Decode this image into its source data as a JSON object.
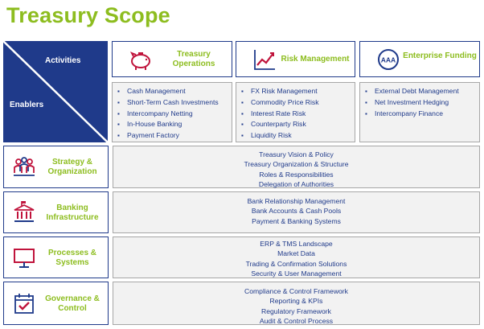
{
  "title": "Treasury Scope",
  "corner": {
    "activities_label": "Activities",
    "enablers_label": "Enablers"
  },
  "activities": [
    {
      "icon": "piggy-bank-icon",
      "title_line1": "Treasury",
      "title_line2": "Operations",
      "items": [
        "Cash Management",
        "Short-Term Cash Investments",
        "Intercompany Netting",
        "In-House Banking",
        "Payment Factory"
      ]
    },
    {
      "icon": "line-chart-icon",
      "title_line1": "Risk Management",
      "items": [
        "FX Risk Management",
        "Commodity Price Risk",
        "Interest Rate Risk",
        "Counterparty Risk",
        "Liquidity Risk"
      ]
    },
    {
      "icon": "aaa-rating-icon",
      "icon_text": "AAA",
      "title_line1": "Enterprise Funding",
      "items": [
        "External Debt Management",
        "Net Investment Hedging",
        "Intercompany Finance"
      ]
    }
  ],
  "enablers": [
    {
      "icon": "people-organization-icon",
      "title_line1": "Strategy &",
      "title_line2": "Organization",
      "items": [
        "Treasury Vision & Policy",
        "Treasury Organization & Structure",
        "Roles & Responsibilities",
        "Delegation of Authorities"
      ]
    },
    {
      "icon": "bank-building-icon",
      "title_line1": "Banking",
      "title_line2": "Infrastructure",
      "items": [
        "Bank Relationship Management",
        "Bank Accounts & Cash Pools",
        "Payment & Banking Systems"
      ]
    },
    {
      "icon": "computer-monitor-icon",
      "title_line1": "Processes &",
      "title_line2": "Systems",
      "items": [
        "ERP & TMS Landscape",
        "Market Data",
        "Trading & Confirmation Solutions",
        "Security & User Management"
      ]
    },
    {
      "icon": "calendar-check-icon",
      "title_line1": "Governance &",
      "title_line2": "Control",
      "items": [
        "Compliance & Control Framework",
        "Reporting & KPIs",
        "Regulatory Framework",
        "Audit & Control Process"
      ]
    }
  ],
  "colors": {
    "navy": "#1f3a8a",
    "green": "#8dbd1f",
    "red": "#c0143c",
    "panel": "#f2f2f2"
  }
}
